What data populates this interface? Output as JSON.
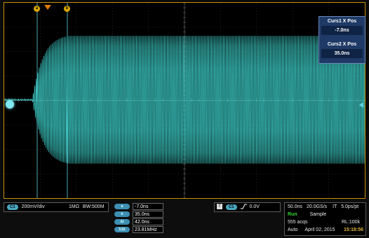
{
  "cursor_markers": {
    "a": "a",
    "b": "b"
  },
  "cursor_readout": {
    "curs1_label": "Curs1 X Pos",
    "curs1_value": "-7.0ns",
    "curs2_label": "Curs2 X Pos",
    "curs2_value": "35.0ns"
  },
  "channel": {
    "badge": "C1",
    "volts_per_div": "200mV/div",
    "coupling": "1MΩ",
    "bandwidth": "BW:500M"
  },
  "measurements": [
    {
      "label": "a",
      "value": "-7.0ns"
    },
    {
      "label": "b",
      "value": "35.0ns"
    },
    {
      "label": "Δt",
      "value": "42.0ns"
    },
    {
      "label": "1/Δt",
      "value": "23.81MHz"
    }
  ],
  "trigger": {
    "source_badge": "C1",
    "slope_icon": "rising-edge-icon",
    "level": "0.0V"
  },
  "acquisition": {
    "time_per_div": "50.0ns",
    "sample_rate": "20.0GS/s",
    "mode_flag": "IT",
    "resolution": "5.0ps/pt",
    "run_state": "Run",
    "acq_mode": "Sample",
    "acq_count": "555 acqs",
    "record_length": "RL:100k",
    "trigger_mode": "Auto",
    "date": "April 02, 2015",
    "time": "15:18:56"
  },
  "colors": {
    "trace": "#3fd6d0",
    "graticule": "#3a3a3a",
    "frame": "#c8900a",
    "cursor": "#5fd0e0",
    "run": "#3cd23c",
    "clock": "#d9b23a"
  }
}
